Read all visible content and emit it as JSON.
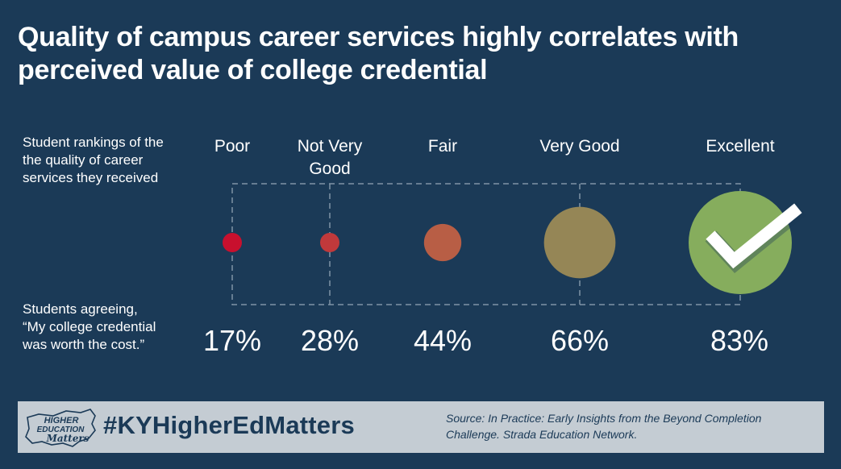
{
  "title_lines": [
    "Quality of campus career services highly correlates with",
    "perceived value of college credential"
  ],
  "rankings_label_lines": [
    "Student rankings of the",
    "the quality of career",
    "services they received"
  ],
  "agreeing_label_lines": [
    "Students agreeing,",
    "“My college credential",
    "was worth the cost.”"
  ],
  "chart_data": {
    "type": "bubble",
    "categories": [
      "Poor",
      "Not Very Good",
      "Fair",
      "Very Good",
      "Excellent"
    ],
    "category_label_lines": [
      [
        "Poor"
      ],
      [
        "Not Very",
        "Good"
      ],
      [
        "Fair"
      ],
      [
        "Very Good"
      ],
      [
        "Excellent"
      ]
    ],
    "values": [
      17,
      28,
      44,
      66,
      83
    ],
    "value_labels": [
      "17%",
      "28%",
      "44%",
      "66%",
      "83%"
    ],
    "colors": [
      "#c8102e",
      "#c0393b",
      "#b85e45",
      "#958656",
      "#86ad5d"
    ],
    "checkmark_on": "Excellent",
    "grid": "dashed bracket"
  },
  "footer": {
    "logo_lines": [
      "HIGHER",
      "EDUCATION",
      "Matters"
    ],
    "hashtag": "#KYHigherEdMatters",
    "source_lines": [
      "Source: In Practice: Early Insights from the Beyond Completion",
      "Challenge. Strada Education Network."
    ]
  },
  "colors": {
    "background": "#1b3a57",
    "footer_background": "#c4ccd3",
    "footer_text": "#1b3a57",
    "dashed_lines": "#7f93a6"
  }
}
